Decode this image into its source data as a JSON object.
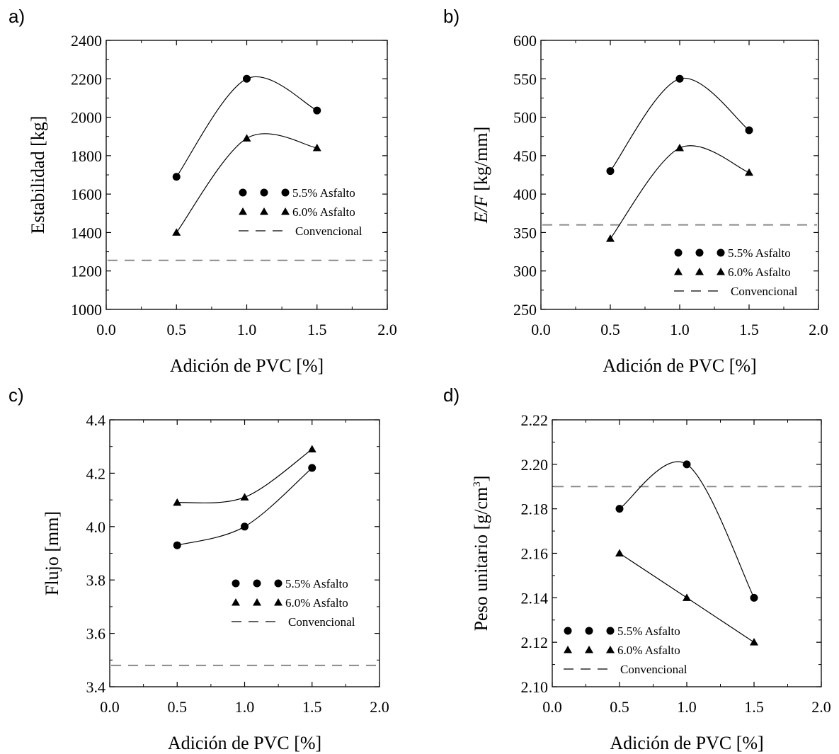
{
  "chart_data": [
    {
      "panel": "a)",
      "type": "scatter",
      "xlabel": "Adición de PVC [%]",
      "ylabel": "Estabilidad [kg]",
      "xlim": [
        0.0,
        2.0
      ],
      "ylim": [
        1000,
        2400
      ],
      "xticks": [
        0.0,
        0.5,
        1.0,
        1.5,
        2.0
      ],
      "xtick_labels": [
        "0.0",
        "0.5",
        "1.0",
        "1.5",
        "2.0"
      ],
      "yticks": [
        1000,
        1200,
        1400,
        1600,
        1800,
        2000,
        2200,
        2400
      ],
      "ytick_labels": [
        "1000",
        "1200",
        "1400",
        "1600",
        "1800",
        "2000",
        "2200",
        "2400"
      ],
      "legend_position": "center-right",
      "series": [
        {
          "name": "5.5% Asfalto",
          "marker": "circle",
          "x": [
            0.5,
            1.0,
            1.5
          ],
          "y": [
            1690,
            2200,
            2035
          ]
        },
        {
          "name": "6.0% Asfalto",
          "marker": "triangle",
          "x": [
            0.5,
            1.0,
            1.5
          ],
          "y": [
            1400,
            1890,
            1840
          ]
        }
      ],
      "reference": {
        "name": "Convencional",
        "y": 1255
      }
    },
    {
      "panel": "b)",
      "type": "scatter",
      "xlabel": "Adición de PVC [%]",
      "ylabel": "E/F [kg/mm]",
      "ylabel_parts": [
        "E/F",
        " [kg/mm]"
      ],
      "xlim": [
        0.0,
        2.0
      ],
      "ylim": [
        250,
        600
      ],
      "xticks": [
        0.0,
        0.5,
        1.0,
        1.5,
        2.0
      ],
      "xtick_labels": [
        "0.0",
        "0.5",
        "1.0",
        "1.5",
        "2.0"
      ],
      "yticks": [
        250,
        300,
        350,
        400,
        450,
        500,
        550,
        600
      ],
      "ytick_labels": [
        "250",
        "300",
        "350",
        "400",
        "450",
        "500",
        "550",
        "600"
      ],
      "legend_position": "bottom-right",
      "series": [
        {
          "name": "5.5% Asfalto",
          "marker": "circle",
          "x": [
            0.5,
            1.0,
            1.5
          ],
          "y": [
            430,
            550,
            483
          ]
        },
        {
          "name": "6.0% Asfalto",
          "marker": "triangle",
          "x": [
            0.5,
            1.0,
            1.5
          ],
          "y": [
            342,
            460,
            428
          ]
        }
      ],
      "reference": {
        "name": "Convencional",
        "y": 360
      }
    },
    {
      "panel": "c)",
      "type": "scatter",
      "xlabel": "Adición de PVC [%]",
      "ylabel": "Flujo [mm]",
      "xlim": [
        0.0,
        2.0
      ],
      "ylim": [
        3.4,
        4.4
      ],
      "xticks": [
        0.0,
        0.5,
        1.0,
        1.5,
        2.0
      ],
      "xtick_labels": [
        "0.0",
        "0.5",
        "1.0",
        "1.5",
        "2.0"
      ],
      "yticks": [
        3.4,
        3.6,
        3.8,
        4.0,
        4.2,
        4.4
      ],
      "ytick_labels": [
        "3.4",
        "3.6",
        "3.8",
        "4.0",
        "4.2",
        "4.4"
      ],
      "legend_position": "center-right",
      "series": [
        {
          "name": "5.5% Asfalto",
          "marker": "circle",
          "x": [
            0.5,
            1.0,
            1.5
          ],
          "y": [
            3.93,
            4.0,
            4.22
          ]
        },
        {
          "name": "6.0% Asfalto",
          "marker": "triangle",
          "x": [
            0.5,
            1.0,
            1.5
          ],
          "y": [
            4.09,
            4.11,
            4.29
          ]
        }
      ],
      "reference": {
        "name": "Convencional",
        "y": 3.48
      }
    },
    {
      "panel": "d)",
      "type": "scatter",
      "xlabel": "Adición de PVC [%]",
      "ylabel": "Peso unitario [g/cm³]",
      "ylabel_parts": [
        "Peso unitario [g/cm",
        "3",
        "]"
      ],
      "xlim": [
        0.0,
        2.0
      ],
      "ylim": [
        2.1,
        2.22
      ],
      "xticks": [
        0.0,
        0.5,
        1.0,
        1.5,
        2.0
      ],
      "xtick_labels": [
        "0.0",
        "0.5",
        "1.0",
        "1.5",
        "2.0"
      ],
      "yticks": [
        2.1,
        2.12,
        2.14,
        2.16,
        2.18,
        2.2,
        2.22
      ],
      "ytick_labels": [
        "2.10",
        "2.12",
        "2.14",
        "2.16",
        "2.18",
        "2.20",
        "2.22"
      ],
      "legend_position": "bottom-left",
      "series": [
        {
          "name": "5.5% Asfalto",
          "marker": "circle",
          "x": [
            0.5,
            1.0,
            1.5
          ],
          "y": [
            2.18,
            2.2,
            2.14
          ]
        },
        {
          "name": "6.0% Asfalto",
          "marker": "triangle",
          "x": [
            0.5,
            1.0,
            1.5
          ],
          "y": [
            2.16,
            2.14,
            2.12
          ]
        }
      ],
      "reference": {
        "name": "Convencional",
        "y": 2.19
      }
    }
  ],
  "colors": {
    "marker": "#000000",
    "curve": "#000000",
    "reference": "#8a8a8a",
    "frame": "#000000"
  }
}
